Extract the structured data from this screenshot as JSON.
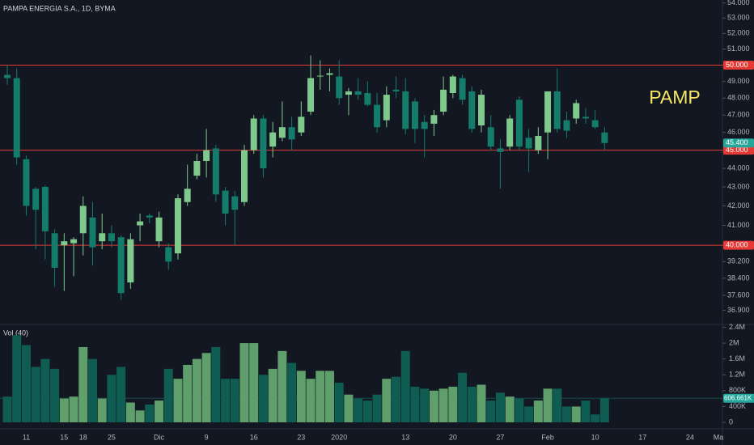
{
  "chart_data": [
    {
      "type": "candlestick",
      "title": "PAMPA ENERGIA S.A., 1D, BYMA",
      "annotation": "PAMP",
      "categories": [
        null,
        null,
        "11",
        null,
        null,
        null,
        "15",
        null,
        "18",
        null,
        null,
        "25",
        null,
        null,
        null,
        null,
        "Dic",
        null,
        null,
        null,
        null,
        "9",
        null,
        null,
        null,
        null,
        "16",
        null,
        null,
        null,
        null,
        "23",
        null,
        null,
        null,
        "2020",
        null,
        null,
        null,
        null,
        null,
        null,
        "13",
        null,
        null,
        null,
        null,
        "20",
        null,
        null,
        null,
        null,
        "27",
        null,
        null,
        null,
        null,
        "Feb",
        null,
        null,
        null,
        null,
        "10",
        null,
        null,
        null,
        null,
        "17",
        null,
        null,
        null,
        null,
        "24",
        null,
        null,
        "Ma"
      ],
      "open": [
        49.4,
        49.2,
        44.5,
        42.9,
        43.0,
        40.6,
        40.0,
        40.1,
        40.6,
        41.4,
        40.2,
        40.6,
        40.4,
        38.2,
        41.0,
        41.5,
        40.2,
        39.9,
        39.6,
        42.2,
        43.6,
        44.4,
        45.1,
        42.8,
        42.5,
        42.2,
        45.0,
        46.8,
        45.2,
        45.7,
        46.3,
        46.0,
        47.2,
        49.3,
        49.4,
        49.3,
        48.2,
        48.4,
        48.3,
        47.6,
        46.7,
        48.5,
        48.4,
        47.8,
        46.6,
        46.5,
        47.2,
        48.3,
        49.2,
        48.4,
        46.4,
        46.3,
        45.1,
        45.2,
        47.9,
        45.7,
        45.0,
        46.0,
        48.4,
        46.7,
        46.8,
        46.9,
        46.7,
        46.0,
        null,
        null,
        null,
        null,
        null,
        null,
        null,
        null,
        null,
        null,
        null,
        null
      ],
      "high": [
        50.0,
        49.8,
        44.7,
        43.0,
        43.1,
        40.8,
        40.6,
        40.4,
        42.5,
        42.2,
        41.6,
        41.0,
        40.5,
        40.6,
        41.6,
        41.6,
        41.7,
        40.1,
        42.6,
        44.2,
        44.8,
        46.2,
        45.3,
        43.0,
        42.8,
        45.3,
        47.0,
        47.0,
        46.6,
        47.8,
        46.9,
        47.8,
        50.6,
        50.3,
        49.8,
        50.3,
        48.6,
        49.2,
        49.0,
        48.3,
        48.7,
        49.3,
        49.2,
        48.0,
        47.0,
        47.3,
        49.3,
        49.4,
        49.4,
        48.7,
        48.5,
        47.0,
        45.6,
        47.0,
        48.1,
        46.2,
        46.3,
        48.4,
        49.8,
        47.2,
        47.9,
        47.4,
        47.3,
        46.3,
        null,
        null,
        null,
        null,
        null,
        null,
        null,
        null,
        null,
        null,
        null,
        null
      ],
      "low": [
        48.8,
        44.2,
        41.5,
        39.8,
        39.3,
        38.0,
        37.8,
        38.5,
        39.5,
        39.0,
        39.8,
        39.9,
        37.4,
        37.9,
        40.2,
        41.1,
        39.9,
        38.8,
        39.3,
        42.0,
        43.4,
        43.5,
        42.2,
        41.0,
        40.0,
        42.0,
        44.8,
        43.5,
        44.6,
        45.5,
        45.0,
        45.8,
        47.0,
        48.5,
        48.4,
        47.6,
        47.0,
        47.9,
        47.5,
        46.0,
        46.3,
        48.0,
        45.9,
        45.4,
        44.6,
        45.8,
        47.0,
        48.0,
        47.6,
        46.0,
        46.0,
        45.0,
        42.9,
        45.0,
        45.0,
        43.8,
        44.8,
        44.5,
        46.0,
        45.7,
        46.5,
        46.5,
        46.2,
        45.0,
        null,
        null,
        null,
        null,
        null,
        null,
        null,
        null,
        null,
        null,
        null,
        null
      ],
      "close": [
        49.2,
        44.6,
        42.0,
        41.8,
        40.7,
        38.9,
        40.2,
        40.3,
        42.0,
        39.9,
        40.6,
        40.2,
        37.7,
        40.3,
        41.2,
        41.4,
        41.4,
        39.2,
        42.4,
        42.9,
        44.4,
        45.0,
        42.6,
        41.6,
        41.8,
        45.0,
        46.8,
        44.0,
        46.0,
        46.3,
        45.6,
        46.9,
        49.2,
        49.35,
        49.5,
        48.0,
        48.4,
        48.2,
        47.6,
        46.3,
        48.2,
        48.4,
        46.2,
        46.2,
        46.2,
        47.0,
        48.5,
        49.3,
        47.9,
        46.2,
        48.2,
        45.2,
        44.9,
        46.8,
        45.2,
        45.1,
        45.8,
        48.4,
        46.2,
        46.1,
        47.7,
        46.8,
        46.3,
        45.4,
        null,
        null,
        null,
        null,
        null,
        null,
        null,
        null,
        null,
        null,
        null,
        null
      ],
      "up_color": "#7fc98c",
      "down_color": "#137c6a",
      "log_scale": true,
      "ylim": [
        36.3,
        54.2
      ],
      "yticks": [
        {
          "value": 54,
          "label": "54.000"
        },
        {
          "value": 53,
          "label": "53.000"
        },
        {
          "value": 52,
          "label": "52.000"
        },
        {
          "value": 51,
          "label": "51.000"
        },
        {
          "value": 50,
          "label": "50.000"
        },
        {
          "value": 49,
          "label": "49.000"
        },
        {
          "value": 48,
          "label": "48.000"
        },
        {
          "value": 47,
          "label": "47.000"
        },
        {
          "value": 46,
          "label": "46.000"
        },
        {
          "value": 45,
          "label": "45.000"
        },
        {
          "value": 44,
          "label": "44.000"
        },
        {
          "value": 43,
          "label": "43.000"
        },
        {
          "value": 42,
          "label": "42.000"
        },
        {
          "value": 41,
          "label": "41.000"
        },
        {
          "value": 40,
          "label": "40.000"
        },
        {
          "value": 39.2,
          "label": "39.200"
        },
        {
          "value": 38.4,
          "label": "38.400"
        },
        {
          "value": 37.6,
          "label": "37.600"
        },
        {
          "value": 36.9,
          "label": "36.900"
        }
      ],
      "levels": [
        {
          "value": 50,
          "label": "50.000"
        },
        {
          "value": 45,
          "label": "45.000"
        },
        {
          "value": 40,
          "label": "40.000"
        }
      ],
      "level_color": "#e53935",
      "last_price": {
        "value": 45.4,
        "label": "45.400"
      },
      "last_color": "#26a69a"
    },
    {
      "type": "volume",
      "title": "Vol (40)",
      "values": [
        650000,
        2200000,
        1950000,
        1400000,
        1600000,
        1350000,
        600000,
        650000,
        1900000,
        1600000,
        600000,
        1200000,
        1400000,
        500000,
        300000,
        450000,
        550000,
        1350000,
        1100000,
        1450000,
        1600000,
        1750000,
        1900000,
        1100000,
        1100000,
        2000000,
        2000000,
        1200000,
        1350000,
        1800000,
        1500000,
        1300000,
        1100000,
        1300000,
        1300000,
        1000000,
        700000,
        600000,
        550000,
        700000,
        1100000,
        1150000,
        1800000,
        900000,
        850000,
        800000,
        850000,
        900000,
        1250000,
        900000,
        950000,
        550000,
        750000,
        650000,
        600000,
        400000,
        550000,
        850000,
        850000,
        400000,
        400000,
        550000,
        200000,
        606661,
        null,
        null,
        null,
        null,
        null,
        null,
        null,
        null,
        null,
        null,
        null,
        null
      ],
      "up_color": "#5f9f6c",
      "down_color": "#0f5c52",
      "ylim": [
        0,
        2450000
      ],
      "yticks": [
        {
          "value": 2400000,
          "label": "2.4M"
        },
        {
          "value": 2000000,
          "label": "2M"
        },
        {
          "value": 1600000,
          "label": "1.6M"
        },
        {
          "value": 1200000,
          "label": "1.2M"
        },
        {
          "value": 800000,
          "label": "800K"
        },
        {
          "value": 400000,
          "label": "400K"
        },
        0
      ],
      "last_value": {
        "value": 606661,
        "label": "606.661K"
      },
      "last_color": "#26a69a"
    }
  ]
}
